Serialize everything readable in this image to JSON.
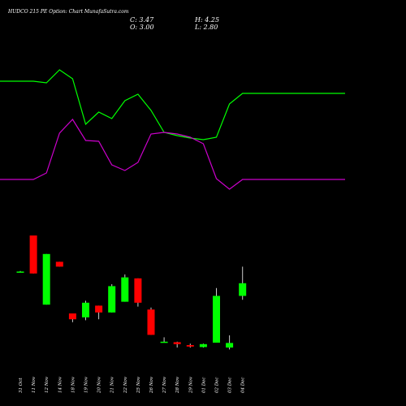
{
  "header": {
    "title": "HUDCO 215 PE Option: Chart MunafaSutra.com",
    "open": "O: 3.00",
    "high": "H: 4.25",
    "low": "L: 2.80",
    "close": "C: 3.47"
  },
  "chart_data": {
    "type": "candlestick",
    "categories": [
      "31 Oct",
      "11 Nov",
      "12 Nov",
      "14 Nov",
      "18 Nov",
      "19 Nov",
      "20 Nov",
      "21 Nov",
      "22 Nov",
      "25 Nov",
      "26 Nov",
      "27 Nov",
      "28 Nov",
      "29 Nov",
      "01 Dec",
      "02 Dec",
      "03 Dec",
      "04 Dec"
    ],
    "candles": [
      {
        "date": "31 Oct",
        "open": 10.8,
        "high": 10.85,
        "low": 10.75,
        "close": 10.8
      },
      {
        "date": "11 Nov",
        "open": 14.5,
        "high": 14.5,
        "low": 10.6,
        "close": 10.6
      },
      {
        "date": "12 Nov",
        "open": 7.4,
        "high": 12.6,
        "low": 7.4,
        "close": 12.6
      },
      {
        "date": "14 Nov",
        "open": 11.8,
        "high": 11.8,
        "low": 11.3,
        "close": 11.3
      },
      {
        "date": "18 Nov",
        "open": 6.5,
        "high": 6.5,
        "low": 5.6,
        "close": 5.9
      },
      {
        "date": "19 Nov",
        "open": 6.1,
        "high": 7.8,
        "low": 5.8,
        "close": 7.6
      },
      {
        "date": "20 Nov",
        "open": 7.3,
        "high": 7.3,
        "low": 5.9,
        "close": 6.6
      },
      {
        "date": "21 Nov",
        "open": 6.6,
        "high": 9.5,
        "low": 6.6,
        "close": 9.3
      },
      {
        "date": "22 Nov",
        "open": 7.7,
        "high": 10.5,
        "low": 7.7,
        "close": 10.2
      },
      {
        "date": "25 Nov",
        "open": 10.1,
        "high": 10.1,
        "low": 7.2,
        "close": 7.6
      },
      {
        "date": "26 Nov",
        "open": 6.9,
        "high": 7.1,
        "low": 4.3,
        "close": 4.3
      },
      {
        "date": "27 Nov",
        "open": 3.55,
        "high": 4.05,
        "low": 3.5,
        "close": 3.6
      },
      {
        "date": "28 Nov",
        "open": 3.55,
        "high": 3.6,
        "low": 3.0,
        "close": 3.35
      },
      {
        "date": "29 Nov",
        "open": 3.25,
        "high": 3.4,
        "low": 3.0,
        "close": 3.1
      },
      {
        "date": "01 Dec",
        "open": 3.05,
        "high": 3.4,
        "low": 3.0,
        "close": 3.35
      },
      {
        "date": "02 Dec",
        "open": 3.5,
        "high": 9.1,
        "low": 3.5,
        "close": 8.3
      },
      {
        "date": "03 Dec",
        "open": 3.0,
        "high": 4.25,
        "low": 2.8,
        "close": 3.47
      },
      {
        "date": "04 Dec",
        "open": 8.3,
        "high": 11.3,
        "low": 7.9,
        "close": 9.6
      }
    ],
    "lines": [
      {
        "color": "#00ff00",
        "values": [
          100,
          100,
          102,
          86,
          97,
          153,
          138,
          146,
          124,
          116,
          136,
          163,
          167,
          170,
          172,
          169,
          128,
          115
        ]
      },
      {
        "color": "#cc00cc",
        "values": [
          221,
          221,
          213,
          164,
          147,
          173,
          174,
          203,
          210,
          200,
          165,
          163,
          165,
          169,
          177,
          220,
          233,
          221
        ]
      }
    ],
    "colors": {
      "up": "#00ff00",
      "down": "#ff0000",
      "background": "#000000",
      "text": "#ffffff"
    }
  }
}
